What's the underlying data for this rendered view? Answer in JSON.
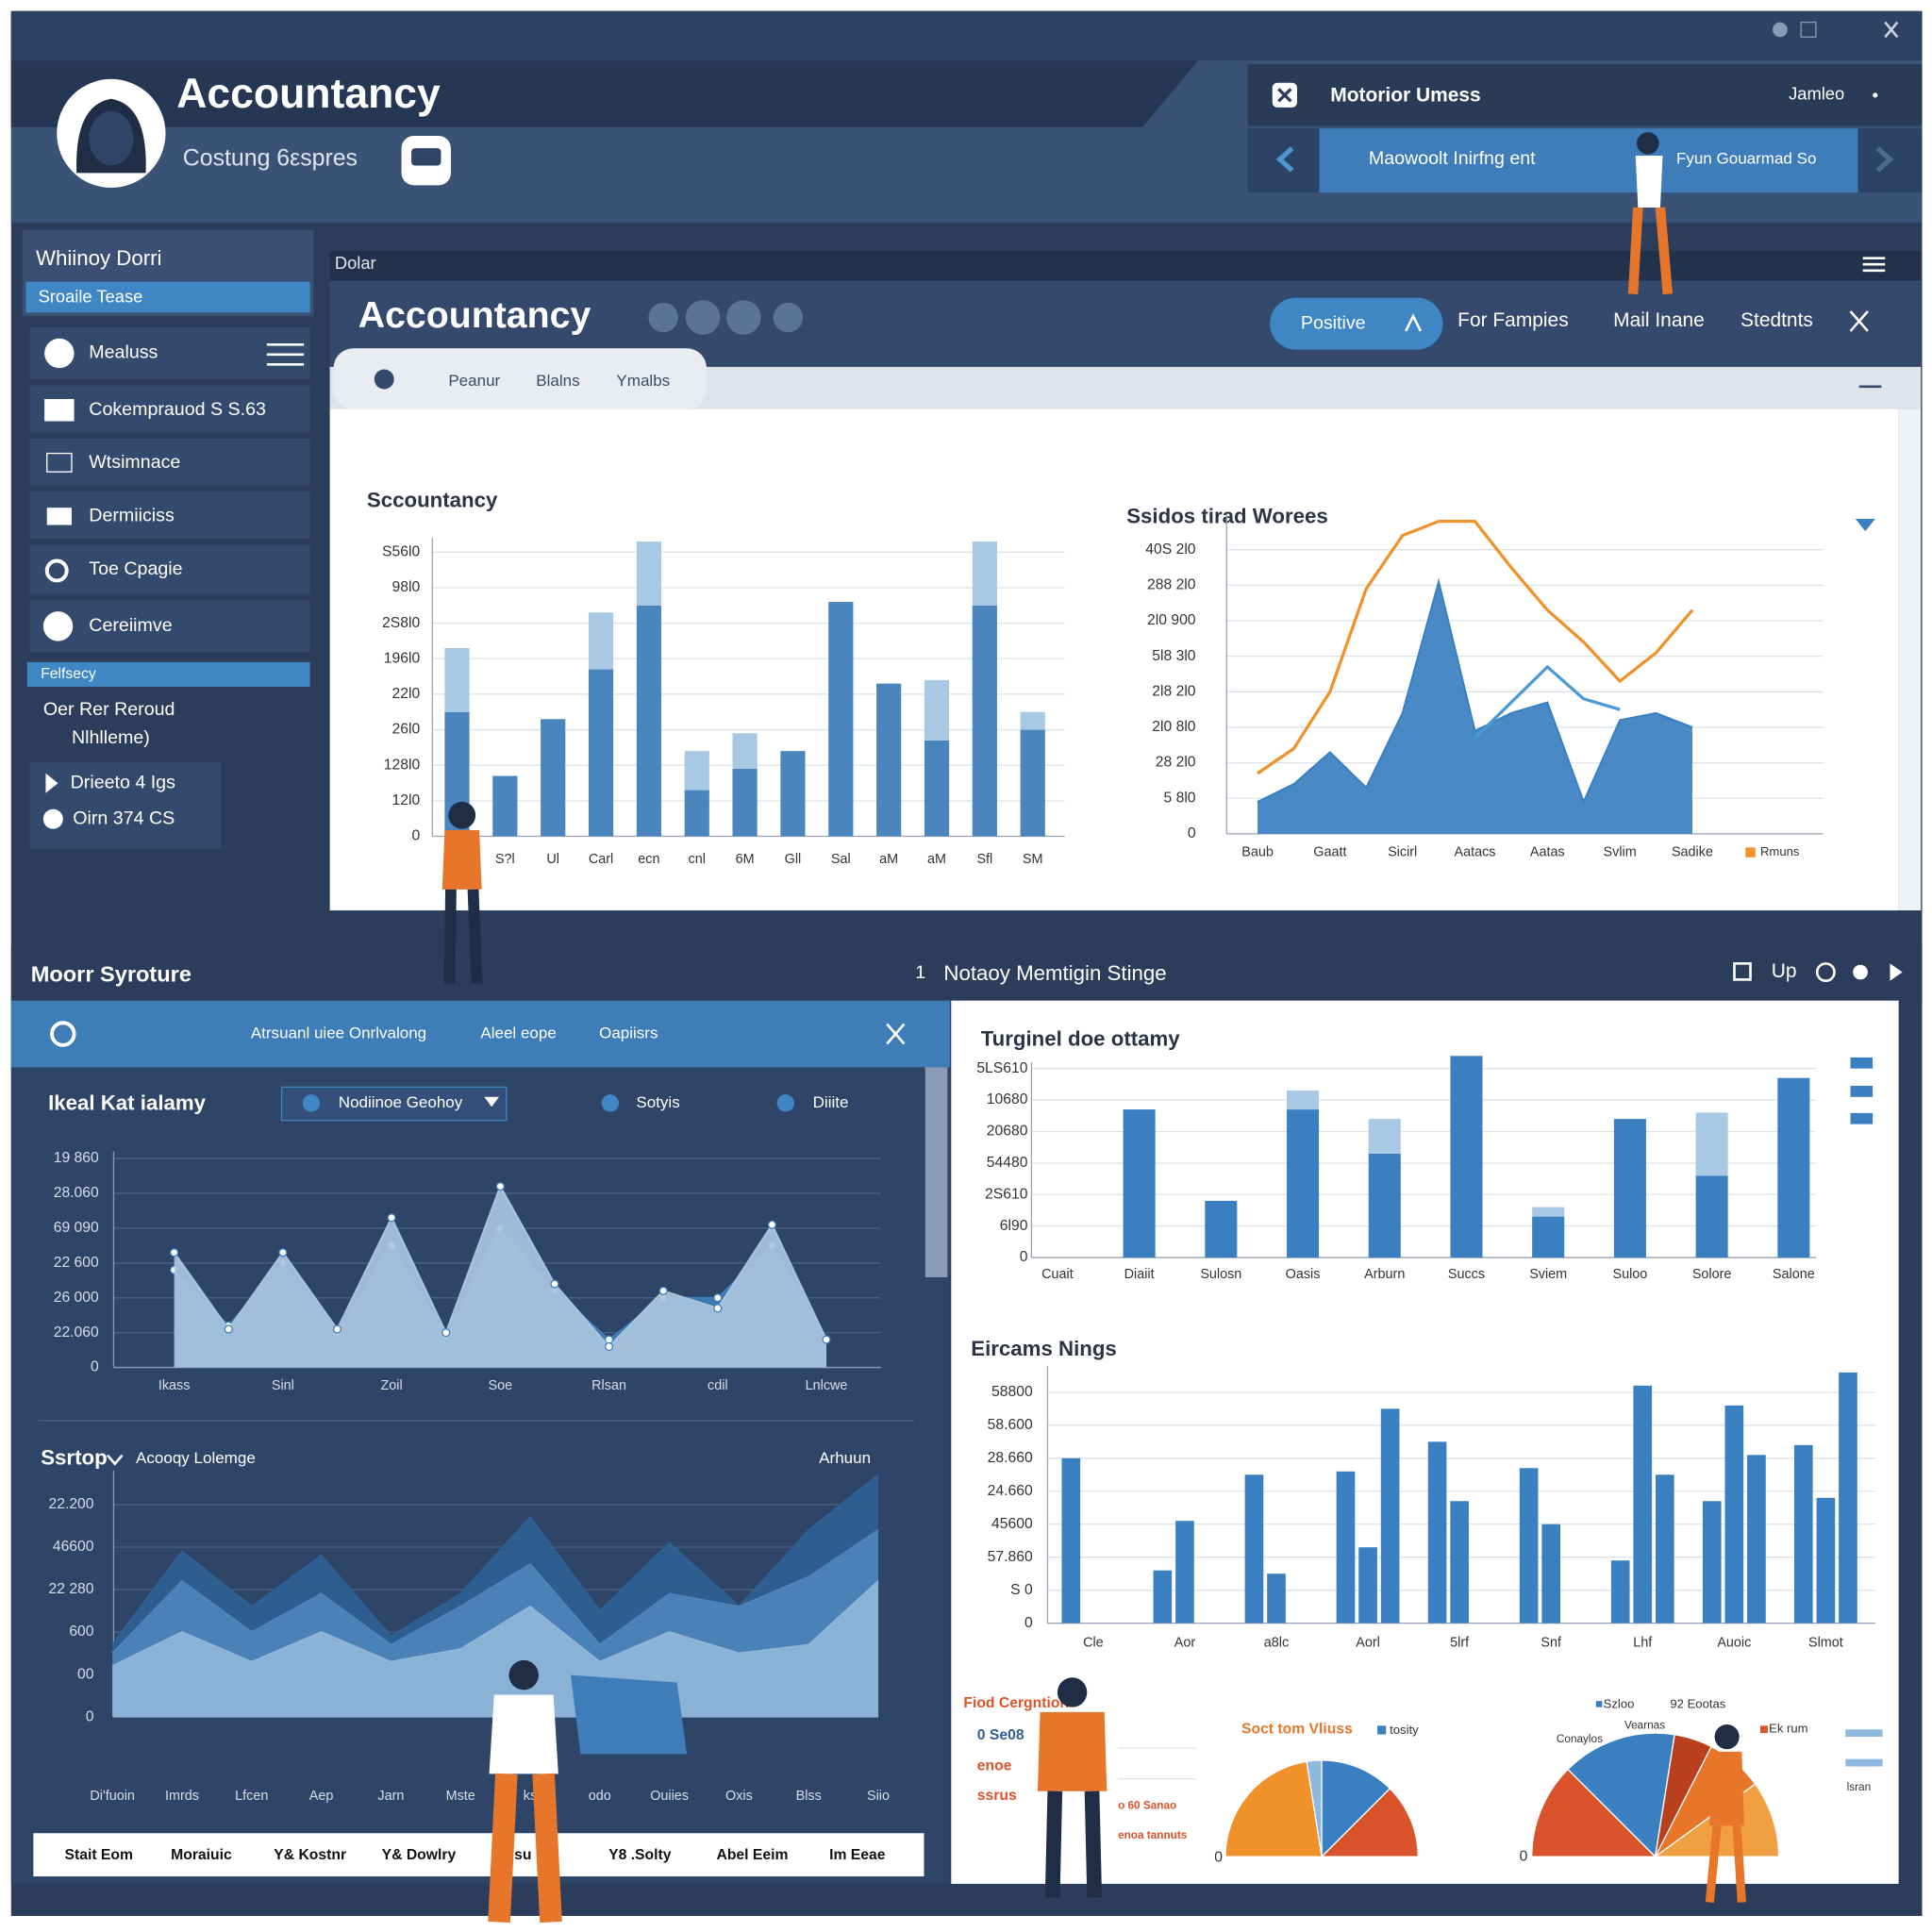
{
  "header": {
    "title": "Accountancy",
    "subtitle": "Costung 6εspres",
    "panel_title": "Motorior Umess",
    "panel_user": "Jamleo",
    "panel_tab": "Maowoolt Inirfng ent",
    "panel_link": "Fyun Gouarmad So"
  },
  "sidebar": {
    "title": "Whiinoy Dorri",
    "active": "Sroaile Tease",
    "menu": [
      "Mealuss",
      "Cokemprauod S S.63",
      "Wtsimnace",
      "Dermiiciss",
      "Toe Cpagie",
      "Cereiimve"
    ],
    "section": "Felfsecy",
    "notes": [
      "Oer Rer Reroud",
      "Nlhlleme)"
    ],
    "links": [
      "Drieeto 4 Igs",
      "Oirn 374 CS"
    ]
  },
  "main": {
    "breadcrumb": "Dolar",
    "title": "Accountancy",
    "tabs": [
      "Positive",
      "For Fampies",
      "Mail Inane",
      "Stedtnts"
    ],
    "subtabs": [
      "Peanur",
      "Blalns",
      "Ymalbs"
    ]
  },
  "bottom_left": {
    "title": "Moorr Syroture",
    "toolbar": [
      "Atrsuanl uiee Onrlvalong",
      "Aleel eope",
      "Oapiisrs"
    ],
    "filters": [
      "Nodiinoe Geohoy",
      "Sotyis",
      "Diiite"
    ],
    "dropdown": "Acooqy Lolemge",
    "side_label": "Arhuun",
    "table": [
      "Stait Eom",
      "Moraiuic",
      "Y& Kostnr",
      "Y& Dowlry",
      "su ny",
      "Y8 .Solty",
      "Abel Eeim",
      "Im Eeae"
    ]
  },
  "bottom_right": {
    "index": "1",
    "title": "Notaoy Memtigin Stinge",
    "action": "Up",
    "notes": [
      "Fiod Cergntion",
      "0 Se08",
      "enoe",
      "ssrus",
      "o 60 Sanao",
      "enoa tannuts"
    ],
    "pie_labels": [
      "tosity",
      "0",
      "Szloo",
      "92 Eootas",
      "Vearnas",
      "Conaylos",
      "Ek rum",
      "lsran",
      "0"
    ]
  },
  "chart_data": [
    {
      "type": "bar",
      "title": "Sccountancy",
      "stacked": true,
      "grid": true,
      "categories": [
        null,
        "S?l",
        "Ul",
        "Carl",
        "ecn",
        "cnl",
        "6M",
        "Gll",
        "Sal",
        "aM",
        "aM",
        "Sfl",
        "SM"
      ],
      "series": [
        {
          "color": "#4a86bd",
          "values": [
            3.5,
            1.7,
            3.3,
            4.7,
            6.5,
            1.3,
            1.9,
            2.4,
            6.6,
            4.3,
            2.7,
            6.5,
            3.0
          ]
        },
        {
          "color": "#a9c8e4",
          "values": [
            1.8,
            null,
            null,
            1.6,
            1.8,
            1.1,
            1.0,
            null,
            null,
            null,
            1.7,
            1.8,
            0.5
          ]
        }
      ],
      "ylim": [
        0,
        8.4
      ],
      "yticks": [
        0,
        {
          "value": 1,
          "label": "12l0"
        },
        {
          "value": 2,
          "label": "128l0"
        },
        {
          "value": 3,
          "label": "26l0"
        },
        {
          "value": 4,
          "label": "22l0"
        },
        {
          "value": 5,
          "label": "196l0"
        },
        {
          "value": 6,
          "label": "2S8l0"
        },
        {
          "value": 7,
          "label": "98l0"
        },
        {
          "value": 8,
          "label": "S56l0"
        }
      ]
    },
    {
      "type": "line",
      "title": "Ssidos tirad Worees",
      "grid": true,
      "legend": "bottom-right",
      "categories": [
        "Baub",
        null,
        "Gaatt",
        null,
        "Sicirl",
        null,
        "Aatacs",
        null,
        "Aatas",
        null,
        "Svlim",
        null,
        "Sadike"
      ],
      "series": [
        {
          "name": "Rmuns",
          "color": "#f0922b",
          "values": [
            1.7,
            2.4,
            4.0,
            6.9,
            8.4,
            8.8,
            8.8,
            7.5,
            6.3,
            5.4,
            4.3,
            5.1,
            6.3
          ]
        },
        {
          "color": "#3a7fc0",
          "fill": true,
          "values": [
            0.9,
            1.4,
            2.3,
            1.3,
            3.4,
            7.1,
            2.9,
            3.4,
            3.7,
            0.9,
            3.2,
            3.4,
            3.0
          ]
        },
        {
          "color": "#4a9ad4",
          "values": [
            null,
            null,
            null,
            null,
            null,
            null,
            2.7,
            3.7,
            4.7,
            3.8,
            3.5,
            null,
            null
          ]
        }
      ],
      "ylim": [
        0,
        9
      ],
      "yticks": [
        0,
        {
          "value": 1,
          "label": "5 8l0"
        },
        {
          "value": 2,
          "label": "28 2l0"
        },
        {
          "value": 3,
          "label": "2l0 8l0"
        },
        {
          "value": 4,
          "label": "2l8 2l0"
        },
        {
          "value": 5,
          "label": "5l8 3l0"
        },
        {
          "value": 6,
          "label": "2l0 900"
        },
        {
          "value": 7,
          "label": "288 2l0"
        },
        {
          "value": 8,
          "label": "40S 2l0"
        }
      ]
    },
    {
      "type": "area",
      "title": "Ikeal Kat ialamy",
      "grid": true,
      "markers": true,
      "categories": [
        "Ikass",
        null,
        "Sinl",
        null,
        "Zoil",
        null,
        "Soe",
        null,
        "Rlsan",
        null,
        "cdil",
        null,
        "Lnlcwe"
      ],
      "series": [
        {
          "color": "#3f7fb8",
          "values": [
            2.8,
            1.2,
            3.0,
            1.0,
            3.5,
            0.9,
            4.0,
            2.2,
            0.8,
            2.0,
            2.0,
            3.5,
            0.8
          ]
        },
        {
          "color": "#a9c4de",
          "values": [
            3.3,
            1.1,
            3.3,
            1.1,
            4.3,
            1.0,
            5.2,
            2.4,
            0.6,
            2.2,
            1.7,
            4.1,
            0.8
          ]
        }
      ],
      "ylim": [
        0,
        6.2
      ],
      "yticks": [
        0,
        {
          "value": 1,
          "label": "22.060"
        },
        {
          "value": 2,
          "label": "26 000"
        },
        {
          "value": 3,
          "label": "22 600"
        },
        {
          "value": 4,
          "label": "69 090"
        },
        {
          "value": 5,
          "label": "28.060"
        },
        {
          "value": 6,
          "label": "19 860"
        }
      ]
    },
    {
      "type": "area",
      "title": "Ssrtop",
      "grid": true,
      "categories": [
        "Di'fuoin",
        "Imrds",
        "Lfcen",
        "Aep",
        "Jarn",
        "Mste",
        "ks",
        "odo",
        "Ouiies",
        "Oxis",
        "Blss",
        "Siio"
      ],
      "series": [
        {
          "color": "#2f5f93",
          "values": [
            1.7,
            3.9,
            2.6,
            3.8,
            1.9,
            2.9,
            4.7,
            2.5,
            4.1,
            2.6,
            4.4,
            5.7
          ]
        },
        {
          "color": "#4d84bb",
          "values": [
            1.5,
            3.2,
            2.0,
            2.9,
            1.7,
            2.6,
            3.6,
            1.7,
            2.9,
            2.6,
            3.3,
            4.4
          ]
        },
        {
          "color": "#8fb5d8",
          "values": [
            1.2,
            2.0,
            1.3,
            2.0,
            1.3,
            1.6,
            2.6,
            1.3,
            2.0,
            1.5,
            1.7,
            3.2
          ]
        }
      ],
      "ylim": [
        0,
        5.8
      ],
      "yticks": [
        0,
        {
          "value": 1,
          "label": "00"
        },
        {
          "value": 2,
          "label": "600"
        },
        {
          "value": 3,
          "label": "22 280"
        },
        {
          "value": 4,
          "label": "46600"
        },
        {
          "value": 5,
          "label": "22.200"
        }
      ]
    },
    {
      "type": "bar",
      "title": "Turginel doe ottamy",
      "stacked": true,
      "grid": true,
      "categories": [
        "Cuait",
        "Diaiit",
        "Sulosn",
        "Oasis",
        "Arburn",
        "Succs",
        "Sviem",
        "Suloo",
        "Solore",
        "Salone"
      ],
      "series": [
        {
          "color": "#3a7fc0",
          "values": [
            null,
            4.7,
            1.8,
            4.7,
            3.3,
            6.4,
            1.3,
            4.4,
            2.6,
            5.7
          ]
        },
        {
          "color": "#a9c8e4",
          "values": [
            null,
            null,
            null,
            0.6,
            1.1,
            null,
            0.3,
            null,
            2.0,
            null
          ]
        }
      ],
      "ylim": [
        0,
        6.2
      ],
      "yticks": [
        0,
        {
          "value": 1,
          "label": "6l90"
        },
        {
          "value": 2,
          "label": "2S610"
        },
        {
          "value": 3,
          "label": "54480"
        },
        {
          "value": 4,
          "label": "20680"
        },
        {
          "value": 5,
          "label": "10680"
        },
        {
          "value": 6,
          "label": "5LS610"
        }
      ]
    },
    {
      "type": "bar",
      "title": "Eircams Nings",
      "grid": true,
      "categories": [
        "Cle",
        "Aor",
        "a8lc",
        "Aorl",
        "5lrf",
        "Snf",
        "Lhf",
        "Auoic",
        "Slmot"
      ],
      "series": [
        {
          "color": "#3a7fc0",
          "values": [
            5.0,
            1.6,
            4.5,
            4.6,
            5.5,
            4.7,
            1.9,
            3.7,
            5.4
          ]
        },
        {
          "color": "#3a7fc0",
          "values": [
            null,
            3.1,
            1.5,
            2.3,
            3.7,
            3.0,
            7.2,
            6.6,
            3.8
          ]
        },
        {
          "color": "#3a7fc0",
          "values": [
            null,
            null,
            null,
            6.5,
            null,
            null,
            4.5,
            5.1,
            7.6
          ]
        }
      ],
      "ylim": [
        0,
        7.8
      ],
      "yticks": [
        0,
        {
          "value": 1,
          "label": "S 0"
        },
        {
          "value": 2,
          "label": "57.860"
        },
        {
          "value": 3,
          "label": "45600"
        },
        {
          "value": 4,
          "label": "24.660"
        },
        {
          "value": 5,
          "label": "28.660"
        },
        {
          "value": 6,
          "label": "58.600"
        },
        {
          "value": 7,
          "label": "58800"
        }
      ]
    },
    {
      "type": "pie",
      "title": "Soct tom Vliuss",
      "values": [
        45,
        5,
        25,
        25
      ],
      "colors": [
        "#f0912a",
        "#8fb8de",
        "#3a7fc0",
        "#d9542a"
      ]
    },
    {
      "type": "pie",
      "values": [
        25,
        30,
        10,
        15,
        20
      ],
      "colors": [
        "#d9542a",
        "#3a7fc0",
        "#b8401e",
        "#e8762a",
        "#f0a040"
      ]
    }
  ]
}
